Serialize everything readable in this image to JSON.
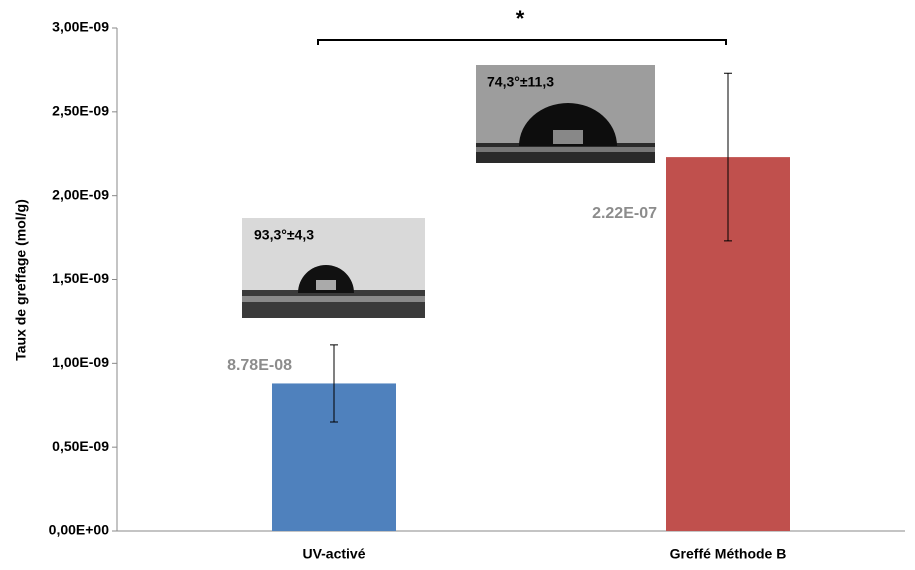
{
  "chart_data": {
    "type": "bar",
    "y_label": "Taux de greffage (mol/g)",
    "categories": [
      "UV-activé",
      "Greffé Méthode B"
    ],
    "values": [
      8.8e-10,
      2.23e-09
    ],
    "errors": [
      2.3e-10,
      5e-10
    ],
    "colors": [
      "#4f81bd",
      "#c0504d"
    ],
    "ylim": [
      0,
      3e-09
    ],
    "yticks": [
      {
        "value": 0,
        "label": "0,00E+00"
      },
      {
        "value": 5e-10,
        "label": "0,50E-09"
      },
      {
        "value": 1e-09,
        "label": "1,00E-09"
      },
      {
        "value": 1.5e-09,
        "label": "1,50E-09"
      },
      {
        "value": 2e-09,
        "label": "2,00E-09"
      },
      {
        "value": 2.5e-09,
        "label": "2,50E-09"
      },
      {
        "value": 3e-09,
        "label": "3,00E-09"
      }
    ],
    "grid": false,
    "annotations": [
      "*",
      "93,3°±4,3",
      "74,3°±11,3",
      "8.78E-08",
      "2.22E-07"
    ]
  }
}
